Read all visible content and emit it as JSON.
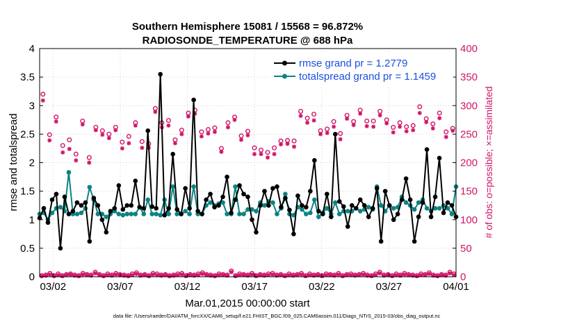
{
  "chart_data": {
    "type": "line",
    "title": "Southern Hemisphere 15081 / 15568 = 96.872%",
    "subtitle": "RADIOSONDE_TEMPERATURE @ 688 hPa",
    "xlabel": "Mar.01,2015 00:00:00 start",
    "ylabel": "rmse and totalspread",
    "y2label": "# of obs: o=possible; ×=assimilated",
    "footnote": "data file: /Users/raeder/DAI/ATM_forcXX/CAM6_setup/f.e21.FHIST_BGC.f09_025.CAM6assim.011/Diags_NTrS_2015-03/obs_diag_output.nc",
    "xlim": [
      1,
      32
    ],
    "ylim": [
      0,
      4
    ],
    "y2lim": [
      0,
      400
    ],
    "x_ticks": [
      2,
      7,
      12,
      17,
      22,
      27,
      32
    ],
    "x_tick_labels": [
      "03/02",
      "03/07",
      "03/12",
      "03/17",
      "03/22",
      "03/27",
      "04/01"
    ],
    "y_ticks": [
      0,
      0.5,
      1,
      1.5,
      2,
      2.5,
      3,
      3.5,
      4
    ],
    "y_tick_labels": [
      "0",
      "0.5",
      "1",
      "1.5",
      "2",
      "2.5",
      "3",
      "3.5",
      "4"
    ],
    "y2_ticks": [
      0,
      50,
      100,
      150,
      200,
      250,
      300,
      350,
      400
    ],
    "y2_tick_labels": [
      "0",
      "50",
      "100",
      "150",
      "200",
      "250",
      "300",
      "350",
      "400"
    ],
    "legend_position": "top-right",
    "colors": {
      "rmse": "#000000",
      "spread": "#0c8383",
      "obs": "#d01567",
      "legend_text": "#1a4fe0"
    },
    "series": [
      {
        "name": "rmse",
        "legend": "rmse grand pr = 1.2779",
        "values": [
          1.03,
          1.2,
          0.95,
          1.35,
          1.45,
          0.5,
          1.4,
          1.1,
          1.15,
          1.3,
          1.25,
          1.3,
          0.62,
          1.38,
          1.25,
          1.0,
          0.78,
          1.15,
          1.2,
          1.6,
          1.18,
          1.25,
          1.25,
          1.68,
          1.22,
          1.2,
          2.56,
          1.23,
          1.2,
          3.55,
          1.08,
          1.2,
          2.15,
          1.18,
          1.1,
          1.55,
          1.2,
          3.1,
          1.15,
          1.1,
          1.35,
          1.45,
          1.22,
          1.25,
          1.4,
          1.75,
          1.12,
          1.35,
          1.6,
          1.45,
          1.4,
          1.0,
          0.78,
          1.25,
          1.5,
          1.25,
          1.55,
          1.58,
          1.22,
          1.38,
          1.17,
          0.75,
          1.42,
          1.25,
          1.22,
          1.5,
          2.04,
          1.15,
          1.1,
          1.45,
          1.05,
          2.5,
          1.32,
          1.23,
          0.88,
          1.25,
          1.2,
          1.35,
          1.25,
          1.05,
          1.2,
          1.55,
          0.62,
          1.5,
          1.25,
          1.0,
          1.1,
          1.35,
          1.72,
          1.35,
          0.62,
          1.05,
          1.3,
          2.23,
          1.05,
          1.4,
          2.08,
          1.12,
          1.3,
          1.25,
          1.05
        ]
      },
      {
        "name": "totalspread",
        "legend": "totalspread grand pr = 1.1459",
        "values": [
          1.1,
          1.12,
          1.0,
          1.12,
          1.2,
          1.22,
          1.15,
          1.83,
          1.1,
          1.1,
          1.12,
          1.2,
          1.57,
          1.35,
          1.1,
          1.1,
          1.05,
          1.1,
          1.15,
          1.1,
          1.08,
          1.1,
          1.1,
          1.1,
          1.22,
          1.1,
          1.35,
          1.1,
          1.1,
          1.08,
          1.35,
          1.1,
          1.58,
          1.1,
          1.1,
          1.15,
          1.1,
          1.58,
          1.1,
          1.1,
          1.25,
          1.3,
          1.25,
          1.28,
          1.3,
          1.1,
          1.1,
          1.58,
          1.1,
          1.1,
          1.18,
          1.18,
          1.15,
          1.3,
          1.25,
          1.32,
          1.3,
          1.1,
          1.2,
          1.45,
          1.1,
          1.08,
          1.22,
          1.18,
          1.1,
          1.12,
          1.35,
          1.05,
          1.12,
          1.2,
          1.1,
          1.3,
          1.1,
          1.15,
          1.15,
          1.15,
          1.2,
          1.15,
          1.18,
          1.22,
          1.18,
          1.58,
          1.25,
          1.15,
          1.25,
          1.2,
          1.22,
          1.4,
          1.3,
          1.25,
          1.18,
          1.3,
          1.35,
          1.2,
          1.15,
          1.2,
          1.2,
          1.25,
          1.2,
          1.1,
          1.58
        ]
      }
    ],
    "obs_possible": [
      320,
      249,
      280,
      230,
      240,
      215,
      273,
      209,
      262,
      256,
      250,
      262,
      236,
      246,
      270,
      237,
      233,
      295,
      270,
      274,
      240,
      257,
      287,
      292,
      254,
      258,
      261,
      225,
      270,
      280,
      247,
      255,
      226,
      222,
      218,
      226,
      238,
      239,
      238,
      290,
      278,
      285,
      256,
      259,
      272,
      251,
      283,
      272,
      292,
      273,
      273,
      290,
      275,
      262,
      270,
      263,
      265,
      298,
      277,
      268,
      287,
      254,
      260
    ],
    "obs_assimilated": [
      309,
      239,
      272,
      218,
      224,
      204,
      267,
      200,
      257,
      249,
      243,
      257,
      225,
      234,
      265,
      226,
      226,
      289,
      262,
      265,
      234,
      250,
      281,
      286,
      246,
      251,
      254,
      219,
      262,
      275,
      240,
      248,
      215,
      215,
      209,
      215,
      232,
      233,
      228,
      282,
      270,
      274,
      250,
      252,
      263,
      241,
      277,
      266,
      286,
      264,
      263,
      283,
      269,
      253,
      263,
      255,
      257,
      287,
      271,
      260,
      278,
      245,
      256
    ],
    "obs_possible_bottom": [
      2,
      3,
      6,
      2,
      5,
      2,
      4,
      5,
      3,
      2,
      6,
      4,
      3,
      8,
      4,
      2,
      5,
      3,
      6,
      4,
      3,
      2,
      5,
      7,
      3,
      4,
      2,
      6,
      5,
      3,
      4,
      2,
      3,
      5,
      6,
      2,
      4,
      3,
      5,
      7,
      4,
      3,
      2,
      5,
      4,
      3,
      10,
      2,
      5,
      4,
      3,
      6,
      2,
      4,
      3,
      5,
      6,
      3,
      4,
      2,
      5,
      3,
      4,
      6,
      2,
      5,
      3,
      4,
      2,
      5,
      4,
      3,
      6,
      2,
      4,
      5,
      3,
      4,
      6,
      3,
      2,
      5,
      8,
      3,
      4,
      2,
      5,
      3,
      6,
      4,
      3,
      2,
      5,
      4,
      7,
      3,
      2,
      4,
      3,
      8,
      5
    ],
    "obs_assimilated_bottom": [
      1,
      2,
      4,
      1,
      3,
      1,
      3,
      4,
      2,
      1,
      4,
      3,
      2,
      6,
      3,
      1,
      3,
      2,
      4,
      3,
      2,
      1,
      3,
      5,
      2,
      3,
      1,
      4,
      3,
      2,
      3,
      1,
      2,
      3,
      4,
      1,
      3,
      2,
      3,
      5,
      3,
      2,
      1,
      3,
      3,
      2,
      8,
      1,
      3,
      3,
      2,
      4,
      1,
      3,
      2,
      3,
      4,
      2,
      3,
      1,
      3,
      2,
      3,
      4,
      1,
      3,
      2,
      3,
      1,
      3,
      3,
      2,
      4,
      1,
      3,
      3,
      2,
      3,
      4,
      2,
      1,
      3,
      6,
      2,
      3,
      1,
      3,
      2,
      4,
      3,
      2,
      1,
      3,
      3,
      5,
      2,
      1,
      3,
      2,
      6,
      3
    ]
  }
}
